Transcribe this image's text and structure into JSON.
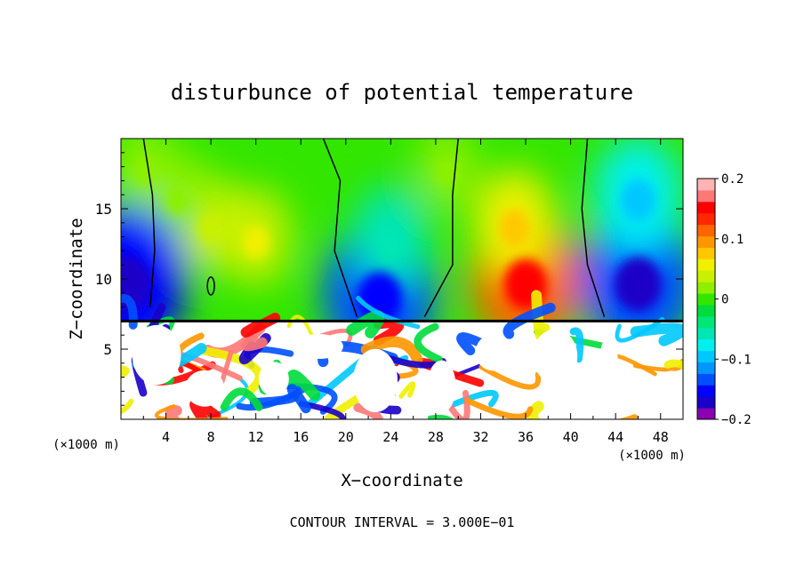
{
  "chart_data": {
    "type": "heatmap",
    "title": "disturbunce of potential temperature",
    "xlabel": "X−coordinate",
    "ylabel": "Z−coordinate",
    "x_unit_left": "(×1000 m)",
    "x_unit_right": "(×1000 m)",
    "footer": "CONTOUR INTERVAL = 3.000E−01",
    "xlim": [
      0,
      50
    ],
    "ylim": [
      0,
      20
    ],
    "xticks": [
      4,
      8,
      12,
      16,
      20,
      24,
      28,
      32,
      36,
      40,
      44,
      48
    ],
    "yticks": [
      5,
      10,
      15
    ],
    "colorbar": {
      "range": [
        -0.2,
        0.2
      ],
      "ticks": [
        "0.2",
        "0.1",
        "0",
        "−0.1",
        "−0.2"
      ],
      "tick_values": [
        0.2,
        0.1,
        0,
        -0.1,
        -0.2
      ],
      "colors": [
        "#8a00b0",
        "#1a00c8",
        "#0000ff",
        "#0050ff",
        "#0096ff",
        "#00c8ff",
        "#00f0f0",
        "#00e6b4",
        "#00e678",
        "#00dc3c",
        "#32e600",
        "#8cf000",
        "#c8f000",
        "#f0f000",
        "#ffc800",
        "#ff9600",
        "#ff6400",
        "#ff2800",
        "#ff0000",
        "#ff7878",
        "#ffb4b4"
      ]
    },
    "field_features": [
      {
        "x": 8,
        "z": 14,
        "value": 0.03
      },
      {
        "x": 12,
        "z": 13,
        "value": 0.04
      },
      {
        "x": 5,
        "z": 16,
        "value": 0.02
      },
      {
        "x": 0.5,
        "z": 10,
        "value": -0.15
      },
      {
        "x": 23,
        "z": 9,
        "value": -0.13
      },
      {
        "x": 24,
        "z": 13,
        "value": -0.05
      },
      {
        "x": 36,
        "z": 10,
        "value": 0.12
      },
      {
        "x": 35,
        "z": 14,
        "value": 0.06
      },
      {
        "x": 46,
        "z": 10,
        "value": -0.14
      },
      {
        "x": 46,
        "z": 16,
        "value": -0.08
      },
      {
        "x": 2,
        "z": 18,
        "value": 0.01
      },
      {
        "x": 29,
        "z": 18,
        "value": 0.01
      }
    ],
    "lower_layer_top": 7.0,
    "lower_layer_note": "values saturate beyond ±0.2 below z ≈ 7"
  }
}
